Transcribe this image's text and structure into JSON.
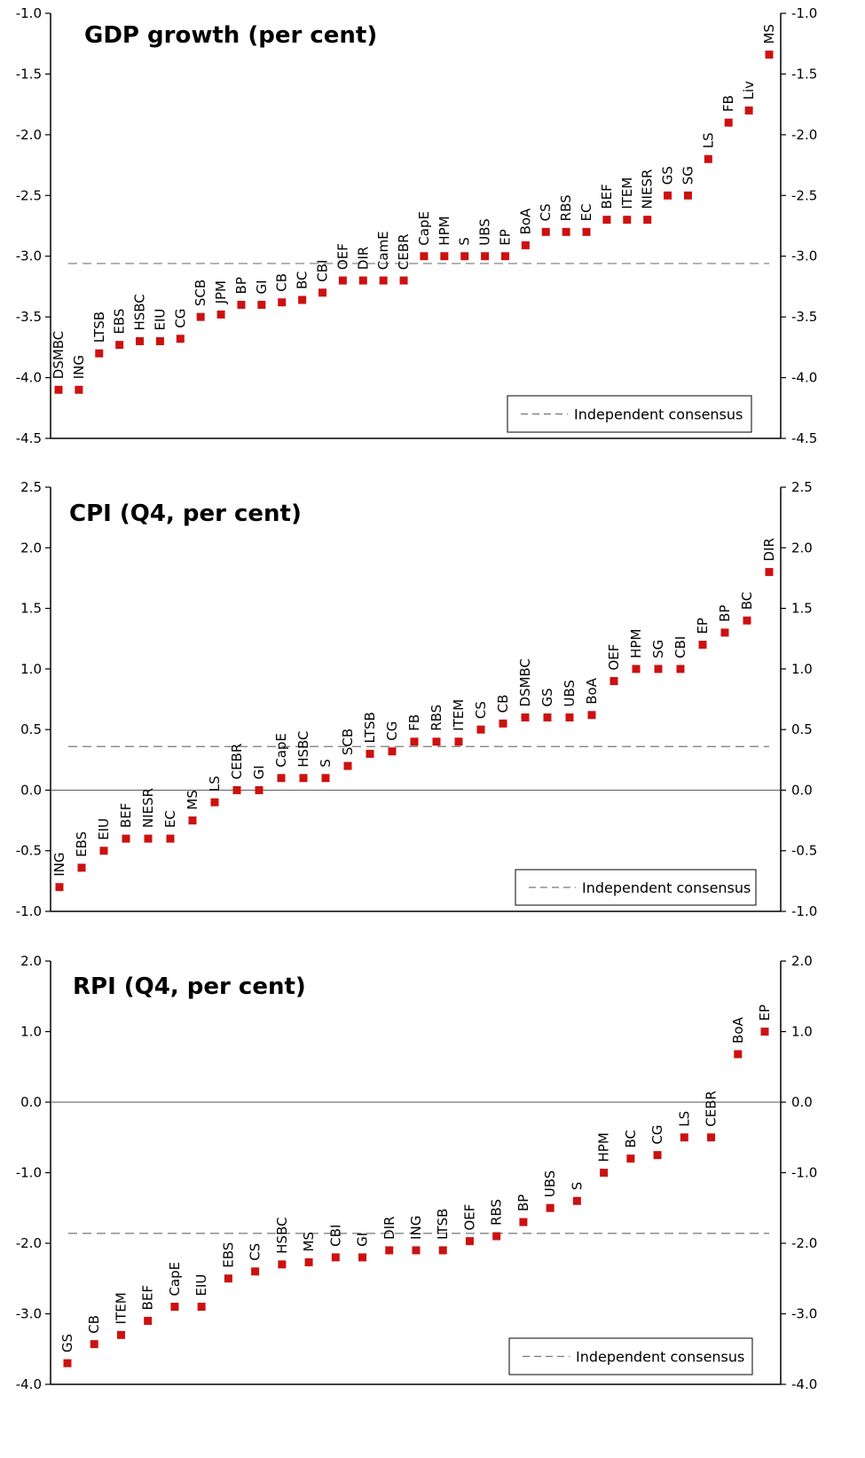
{
  "chart_data": [
    {
      "type": "scatter",
      "title": "GDP growth (per cent)",
      "ylim": [
        -4.5,
        -1.0
      ],
      "yticks": [
        "-1.0",
        "-1.5",
        "-2.0",
        "-2.5",
        "-3.0",
        "-3.5",
        "-4.0",
        "-4.5"
      ],
      "ytick_values": [
        -1.0,
        -1.5,
        -2.0,
        -2.5,
        -3.0,
        -3.5,
        -4.0,
        -4.5
      ],
      "consensus": -3.06,
      "legend": "Independent consensus",
      "legend_position": "bottom-right",
      "marker_color": "#cc1111",
      "categories": [
        "DSMBC",
        "ING",
        "LTSB",
        "EBS",
        "HSBC",
        "EIU",
        "CG",
        "SCB",
        "JPM",
        "BP",
        "GI",
        "CB",
        "BC",
        "CBI",
        "OEF",
        "DIR",
        "CamE",
        "CEBR",
        "CapE",
        "HPM",
        "S",
        "UBS",
        "EP",
        "BoA",
        "CS",
        "RBS",
        "EC",
        "BEF",
        "ITEM",
        "NIESR",
        "GS",
        "SG",
        "LS",
        "FB",
        "Liv",
        "MS"
      ],
      "values": [
        -4.1,
        -4.1,
        -3.8,
        -3.73,
        -3.7,
        -3.7,
        -3.68,
        -3.5,
        -3.48,
        -3.4,
        -3.4,
        -3.38,
        -3.36,
        -3.3,
        -3.2,
        -3.2,
        -3.2,
        -3.2,
        -3.0,
        -3.0,
        -3.0,
        -3.0,
        -3.0,
        -2.91,
        -2.8,
        -2.8,
        -2.8,
        -2.7,
        -2.7,
        -2.7,
        -2.5,
        -2.5,
        -2.2,
        -1.9,
        -1.8,
        -1.34
      ]
    },
    {
      "type": "scatter",
      "title": "CPI (Q4, per cent)",
      "ylim": [
        -1.0,
        2.5
      ],
      "yticks": [
        "2.5",
        "2.0",
        "1.5",
        "1.0",
        "0.5",
        "0.0",
        "-0.5",
        "-1.0"
      ],
      "ytick_values": [
        2.5,
        2.0,
        1.5,
        1.0,
        0.5,
        0.0,
        -0.5,
        -1.0
      ],
      "consensus": 0.36,
      "zero_line": true,
      "legend": "Independent consensus",
      "legend_position": "bottom-right",
      "marker_color": "#cc1111",
      "categories": [
        "ING",
        "EBS",
        "EIU",
        "BEF",
        "NIESR",
        "EC",
        "MS",
        "LS",
        "CEBR",
        "GI",
        "CapE",
        "HSBC",
        "S",
        "SCB",
        "LTSB",
        "CG",
        "FB",
        "RBS",
        "ITEM",
        "CS",
        "CB",
        "DSMBC",
        "GS",
        "UBS",
        "BoA",
        "OEF",
        "HPM",
        "SG",
        "CBI",
        "EP",
        "BP",
        "BC",
        "DIR"
      ],
      "values": [
        -0.8,
        -0.64,
        -0.5,
        -0.4,
        -0.4,
        -0.4,
        -0.25,
        -0.1,
        0.0,
        0.0,
        0.1,
        0.1,
        0.1,
        0.2,
        0.3,
        0.32,
        0.4,
        0.4,
        0.4,
        0.5,
        0.55,
        0.6,
        0.6,
        0.6,
        0.62,
        0.9,
        1.0,
        1.0,
        1.0,
        1.2,
        1.3,
        1.4,
        1.8
      ]
    },
    {
      "type": "scatter",
      "title": "RPI (Q4, per cent)",
      "ylim": [
        -4.0,
        2.0
      ],
      "yticks": [
        "2.0",
        "1.0",
        "0.0",
        "-1.0",
        "-2.0",
        "-3.0",
        "-4.0"
      ],
      "ytick_values": [
        2.0,
        1.0,
        0.0,
        -1.0,
        -2.0,
        -3.0,
        -4.0
      ],
      "consensus": -1.86,
      "zero_line": true,
      "legend": "Independent consensus",
      "legend_position": "bottom-right",
      "marker_color": "#cc1111",
      "categories": [
        "GS",
        "CB",
        "ITEM",
        "BEF",
        "CapE",
        "EIU",
        "EBS",
        "CS",
        "HSBC",
        "MS",
        "CBI",
        "GI",
        "DIR",
        "ING",
        "LTSB",
        "OEF",
        "RBS",
        "BP",
        "UBS",
        "S",
        "HPM",
        "BC",
        "CG",
        "LS",
        "CEBR",
        "BoA",
        "EP"
      ],
      "values": [
        -3.7,
        -3.43,
        -3.3,
        -3.1,
        -2.9,
        -2.9,
        -2.5,
        -2.4,
        -2.3,
        -2.27,
        -2.2,
        -2.2,
        -2.1,
        -2.1,
        -2.1,
        -1.97,
        -1.9,
        -1.7,
        -1.5,
        -1.4,
        -1.0,
        -0.8,
        -0.75,
        -0.5,
        -0.5,
        0.68,
        1.0
      ]
    }
  ]
}
